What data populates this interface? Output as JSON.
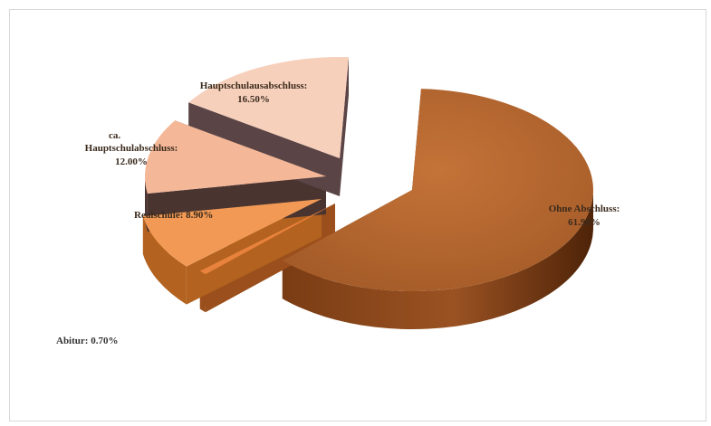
{
  "chart_data": {
    "type": "pie",
    "style": "3d-exploded",
    "title": "",
    "legend": "none",
    "slices": [
      {
        "label": "Ohne Abschluss",
        "value": 61.9,
        "text": "61.90%",
        "color": "#b0632c",
        "side": "#6e3612"
      },
      {
        "label": "Abitur",
        "value": 0.7,
        "text": "Abitur: 0.70%",
        "color": "#e8823c",
        "side": "#9a4f1c"
      },
      {
        "label": "Realschule",
        "value": 8.9,
        "text": "Realschule: 8.90%",
        "color": "#f29a55",
        "side": "#b3621f"
      },
      {
        "label": "Hauptschulabschluss",
        "value": 12.0,
        "text": "12.00%",
        "color": "#f4b898",
        "side": "#4a3430"
      },
      {
        "label": "Hauptschulausabschluss",
        "value": 16.5,
        "text": "16.50%",
        "color": "#f7d0bc",
        "side": "#5a4446"
      }
    ],
    "extra_labels": [
      "ca."
    ]
  }
}
